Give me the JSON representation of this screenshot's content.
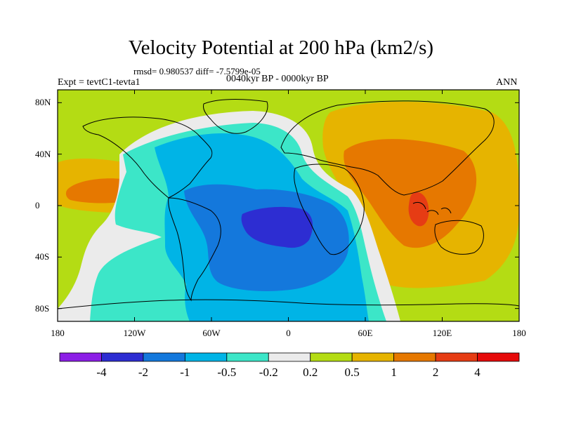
{
  "chart_data": {
    "type": "heatmap",
    "title": "Velocity Potential at 200 hPa (km2/s)",
    "stats_line": "rmsd= 0.980537 diff= -7.5799e-05",
    "experiment": "Expt = tevtC1-tevta1",
    "period": "0040kyr BP - 0000kyr BP",
    "season": "ANN",
    "projection": "cylindrical equidistant, 180W-180E, 90S-90N",
    "xrange": [
      -180,
      180
    ],
    "yrange": [
      -90,
      90
    ],
    "x_ticks": [
      {
        "value": -180,
        "label": "180"
      },
      {
        "value": -120,
        "label": "120W"
      },
      {
        "value": -60,
        "label": "60W"
      },
      {
        "value": 0,
        "label": "0"
      },
      {
        "value": 60,
        "label": "60E"
      },
      {
        "value": 120,
        "label": "120E"
      },
      {
        "value": 180,
        "label": "180"
      }
    ],
    "y_ticks": [
      {
        "value": 80,
        "label": "80N"
      },
      {
        "value": 40,
        "label": "40N"
      },
      {
        "value": 0,
        "label": "0"
      },
      {
        "value": -40,
        "label": "40S"
      },
      {
        "value": -80,
        "label": "80S"
      }
    ],
    "contour_levels": [
      -4,
      -2,
      -1,
      -0.5,
      -0.2,
      0.2,
      0.5,
      1,
      2,
      4
    ],
    "level_labels": [
      "-4",
      "-2",
      "-1",
      "-0.5",
      "-0.2",
      "0.2",
      "0.5",
      "1",
      "2",
      "4"
    ],
    "colors": [
      "#8c1ee6",
      "#2d2dd2",
      "#1478dc",
      "#00b4e6",
      "#3ce6c8",
      "#ebebeb",
      "#b4dc14",
      "#e6b400",
      "#e67800",
      "#e63c14",
      "#e60a0a"
    ],
    "field_regions": [
      {
        "level": "background",
        "range": "0.2 to 0.5",
        "color_index": 6
      },
      {
        "level": "upper",
        "range": "0.5 to 1",
        "center_lon": 85,
        "center_lat": 20,
        "color_index": 7
      },
      {
        "level": "upper",
        "range": "1 to 2",
        "center_lon": 85,
        "center_lat": 20,
        "color_index": 8
      },
      {
        "level": "upper",
        "range": "2 to 4",
        "center_lon": 104,
        "center_lat": -3,
        "color_index": 9
      },
      {
        "level": "upper",
        "range": "1 to 2",
        "center_lon": -145,
        "center_lat": 12,
        "color_index": 8
      },
      {
        "level": "upper",
        "range": "0.5 to 1",
        "center_lon": -150,
        "center_lat": 12,
        "color_index": 7
      },
      {
        "level": "lower",
        "range": "-0.2 to 0.2",
        "center_lon": -40,
        "center_lat": -10,
        "color_index": 5
      },
      {
        "level": "lower",
        "range": "-0.5 to -0.2",
        "center_lon": -40,
        "center_lat": -15,
        "color_index": 4
      },
      {
        "level": "lower",
        "range": "-1 to -0.5",
        "center_lon": -38,
        "center_lat": -20,
        "color_index": 3
      },
      {
        "level": "lower",
        "range": "-2 to -1",
        "center_lon": -28,
        "center_lat": -25,
        "color_index": 2
      },
      {
        "level": "lower",
        "range": "-4 to -2",
        "center_lon": -12,
        "center_lat": -12,
        "color_index": 1
      }
    ]
  }
}
